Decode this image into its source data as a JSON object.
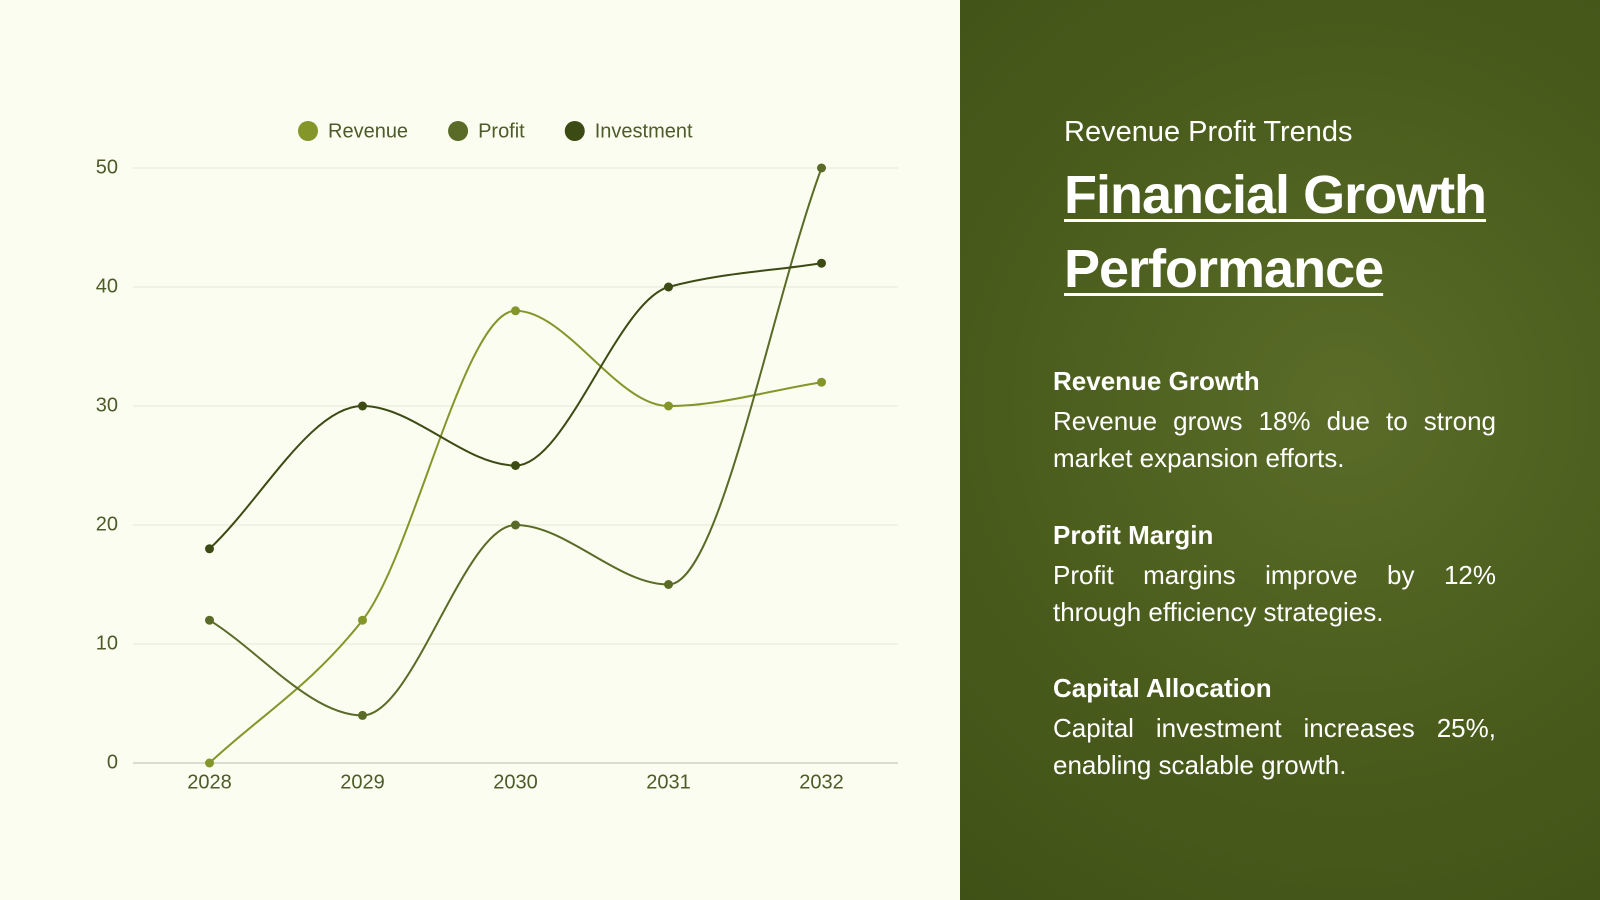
{
  "chart_data": {
    "type": "line",
    "categories": [
      "2028",
      "2029",
      "2030",
      "2031",
      "2032"
    ],
    "series": [
      {
        "name": "Revenue",
        "color": "#84962a",
        "values": [
          0,
          12,
          38,
          30,
          32
        ]
      },
      {
        "name": "Profit",
        "color": "#5a6b27",
        "values": [
          12,
          4,
          20,
          15,
          50
        ]
      },
      {
        "name": "Investment",
        "color": "#3c4a14",
        "values": [
          18,
          30,
          25,
          40,
          42
        ]
      }
    ],
    "ylim": [
      0,
      50
    ],
    "yticks": [
      0,
      10,
      20,
      30,
      40,
      50
    ],
    "grid": true,
    "legend": "top"
  },
  "panel": {
    "subtitle": "Revenue Profit Trends",
    "title": "Financial Growth Performance",
    "sections": [
      {
        "heading": "Revenue Growth",
        "text": "Revenue grows 18% due to strong market expansion efforts."
      },
      {
        "heading": "Profit Margin",
        "text": "Profit margins improve by 12% through efficiency strategies."
      },
      {
        "heading": "Capital Allocation",
        "text": "Capital investment increases 25%, enabling scalable growth."
      }
    ]
  }
}
